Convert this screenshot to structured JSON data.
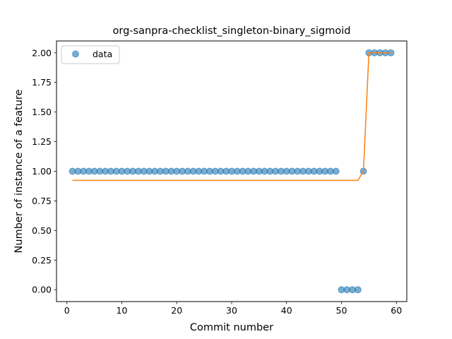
{
  "chart_data": {
    "type": "scatter",
    "title": "org-sanpra-checklist_singleton-binary_sigmoid",
    "xlabel": "Commit number",
    "ylabel": "Number of instance of a feature",
    "xlim": [
      -1.9,
      61.9
    ],
    "ylim": [
      -0.1,
      2.1
    ],
    "xticks": [
      0,
      10,
      20,
      30,
      40,
      50,
      60
    ],
    "yticks": [
      0.0,
      0.25,
      0.5,
      0.75,
      1.0,
      1.25,
      1.5,
      1.75,
      2.0
    ],
    "xtick_labels": [
      "0",
      "10",
      "20",
      "30",
      "40",
      "50",
      "60"
    ],
    "ytick_labels": [
      "0.00",
      "0.25",
      "0.50",
      "0.75",
      "1.00",
      "1.25",
      "1.50",
      "1.75",
      "2.00"
    ],
    "legend": {
      "position": "upper-left",
      "entries": [
        "data"
      ]
    },
    "grid": false,
    "series": [
      {
        "name": "data",
        "kind": "scatter",
        "color": "#1f77b4",
        "x": [
          1,
          2,
          3,
          4,
          5,
          6,
          7,
          8,
          9,
          10,
          11,
          12,
          13,
          14,
          15,
          16,
          17,
          18,
          19,
          20,
          21,
          22,
          23,
          24,
          25,
          26,
          27,
          28,
          29,
          30,
          31,
          32,
          33,
          34,
          35,
          36,
          37,
          38,
          39,
          40,
          41,
          42,
          43,
          44,
          45,
          46,
          47,
          48,
          49,
          50,
          51,
          52,
          53,
          54,
          55,
          56,
          57,
          58,
          59
        ],
        "y": [
          1,
          1,
          1,
          1,
          1,
          1,
          1,
          1,
          1,
          1,
          1,
          1,
          1,
          1,
          1,
          1,
          1,
          1,
          1,
          1,
          1,
          1,
          1,
          1,
          1,
          1,
          1,
          1,
          1,
          1,
          1,
          1,
          1,
          1,
          1,
          1,
          1,
          1,
          1,
          1,
          1,
          1,
          1,
          1,
          1,
          1,
          1,
          1,
          1,
          0,
          0,
          0,
          0,
          1,
          2,
          2,
          2,
          2,
          2
        ]
      },
      {
        "kind": "line",
        "color": "#ff7f0e",
        "x": [
          1,
          53,
          54,
          55,
          59
        ],
        "y": [
          0.923,
          0.923,
          1.0,
          2.0,
          2.0
        ]
      }
    ]
  }
}
